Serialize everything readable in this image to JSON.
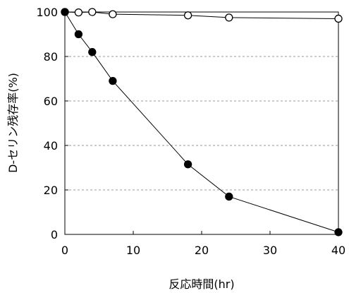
{
  "chart_data": {
    "type": "line",
    "title": "",
    "xlabel": "反応時間(hr)",
    "ylabel": "D-セリン残存率(%)",
    "xlim": [
      0,
      40
    ],
    "ylim": [
      0,
      100
    ],
    "x_ticks": [
      0,
      10,
      20,
      30,
      40
    ],
    "y_ticks": [
      0,
      20,
      40,
      60,
      80,
      100
    ],
    "grid": "horizontal dashed",
    "legend": "none",
    "series": [
      {
        "marker": "open-circle",
        "color": "#000000",
        "points": [
          {
            "x": 0,
            "y": 100
          },
          {
            "x": 2,
            "y": 99.8
          },
          {
            "x": 4,
            "y": 100
          },
          {
            "x": 7,
            "y": 99
          },
          {
            "x": 18,
            "y": 98.5
          },
          {
            "x": 24,
            "y": 97.5
          },
          {
            "x": 40,
            "y": 97
          }
        ]
      },
      {
        "marker": "filled-circle",
        "color": "#000000",
        "points": [
          {
            "x": 0,
            "y": 100
          },
          {
            "x": 2,
            "y": 90
          },
          {
            "x": 4,
            "y": 82
          },
          {
            "x": 7,
            "y": 69
          },
          {
            "x": 18,
            "y": 31.5
          },
          {
            "x": 24,
            "y": 17
          },
          {
            "x": 40,
            "y": 1
          }
        ]
      }
    ]
  }
}
